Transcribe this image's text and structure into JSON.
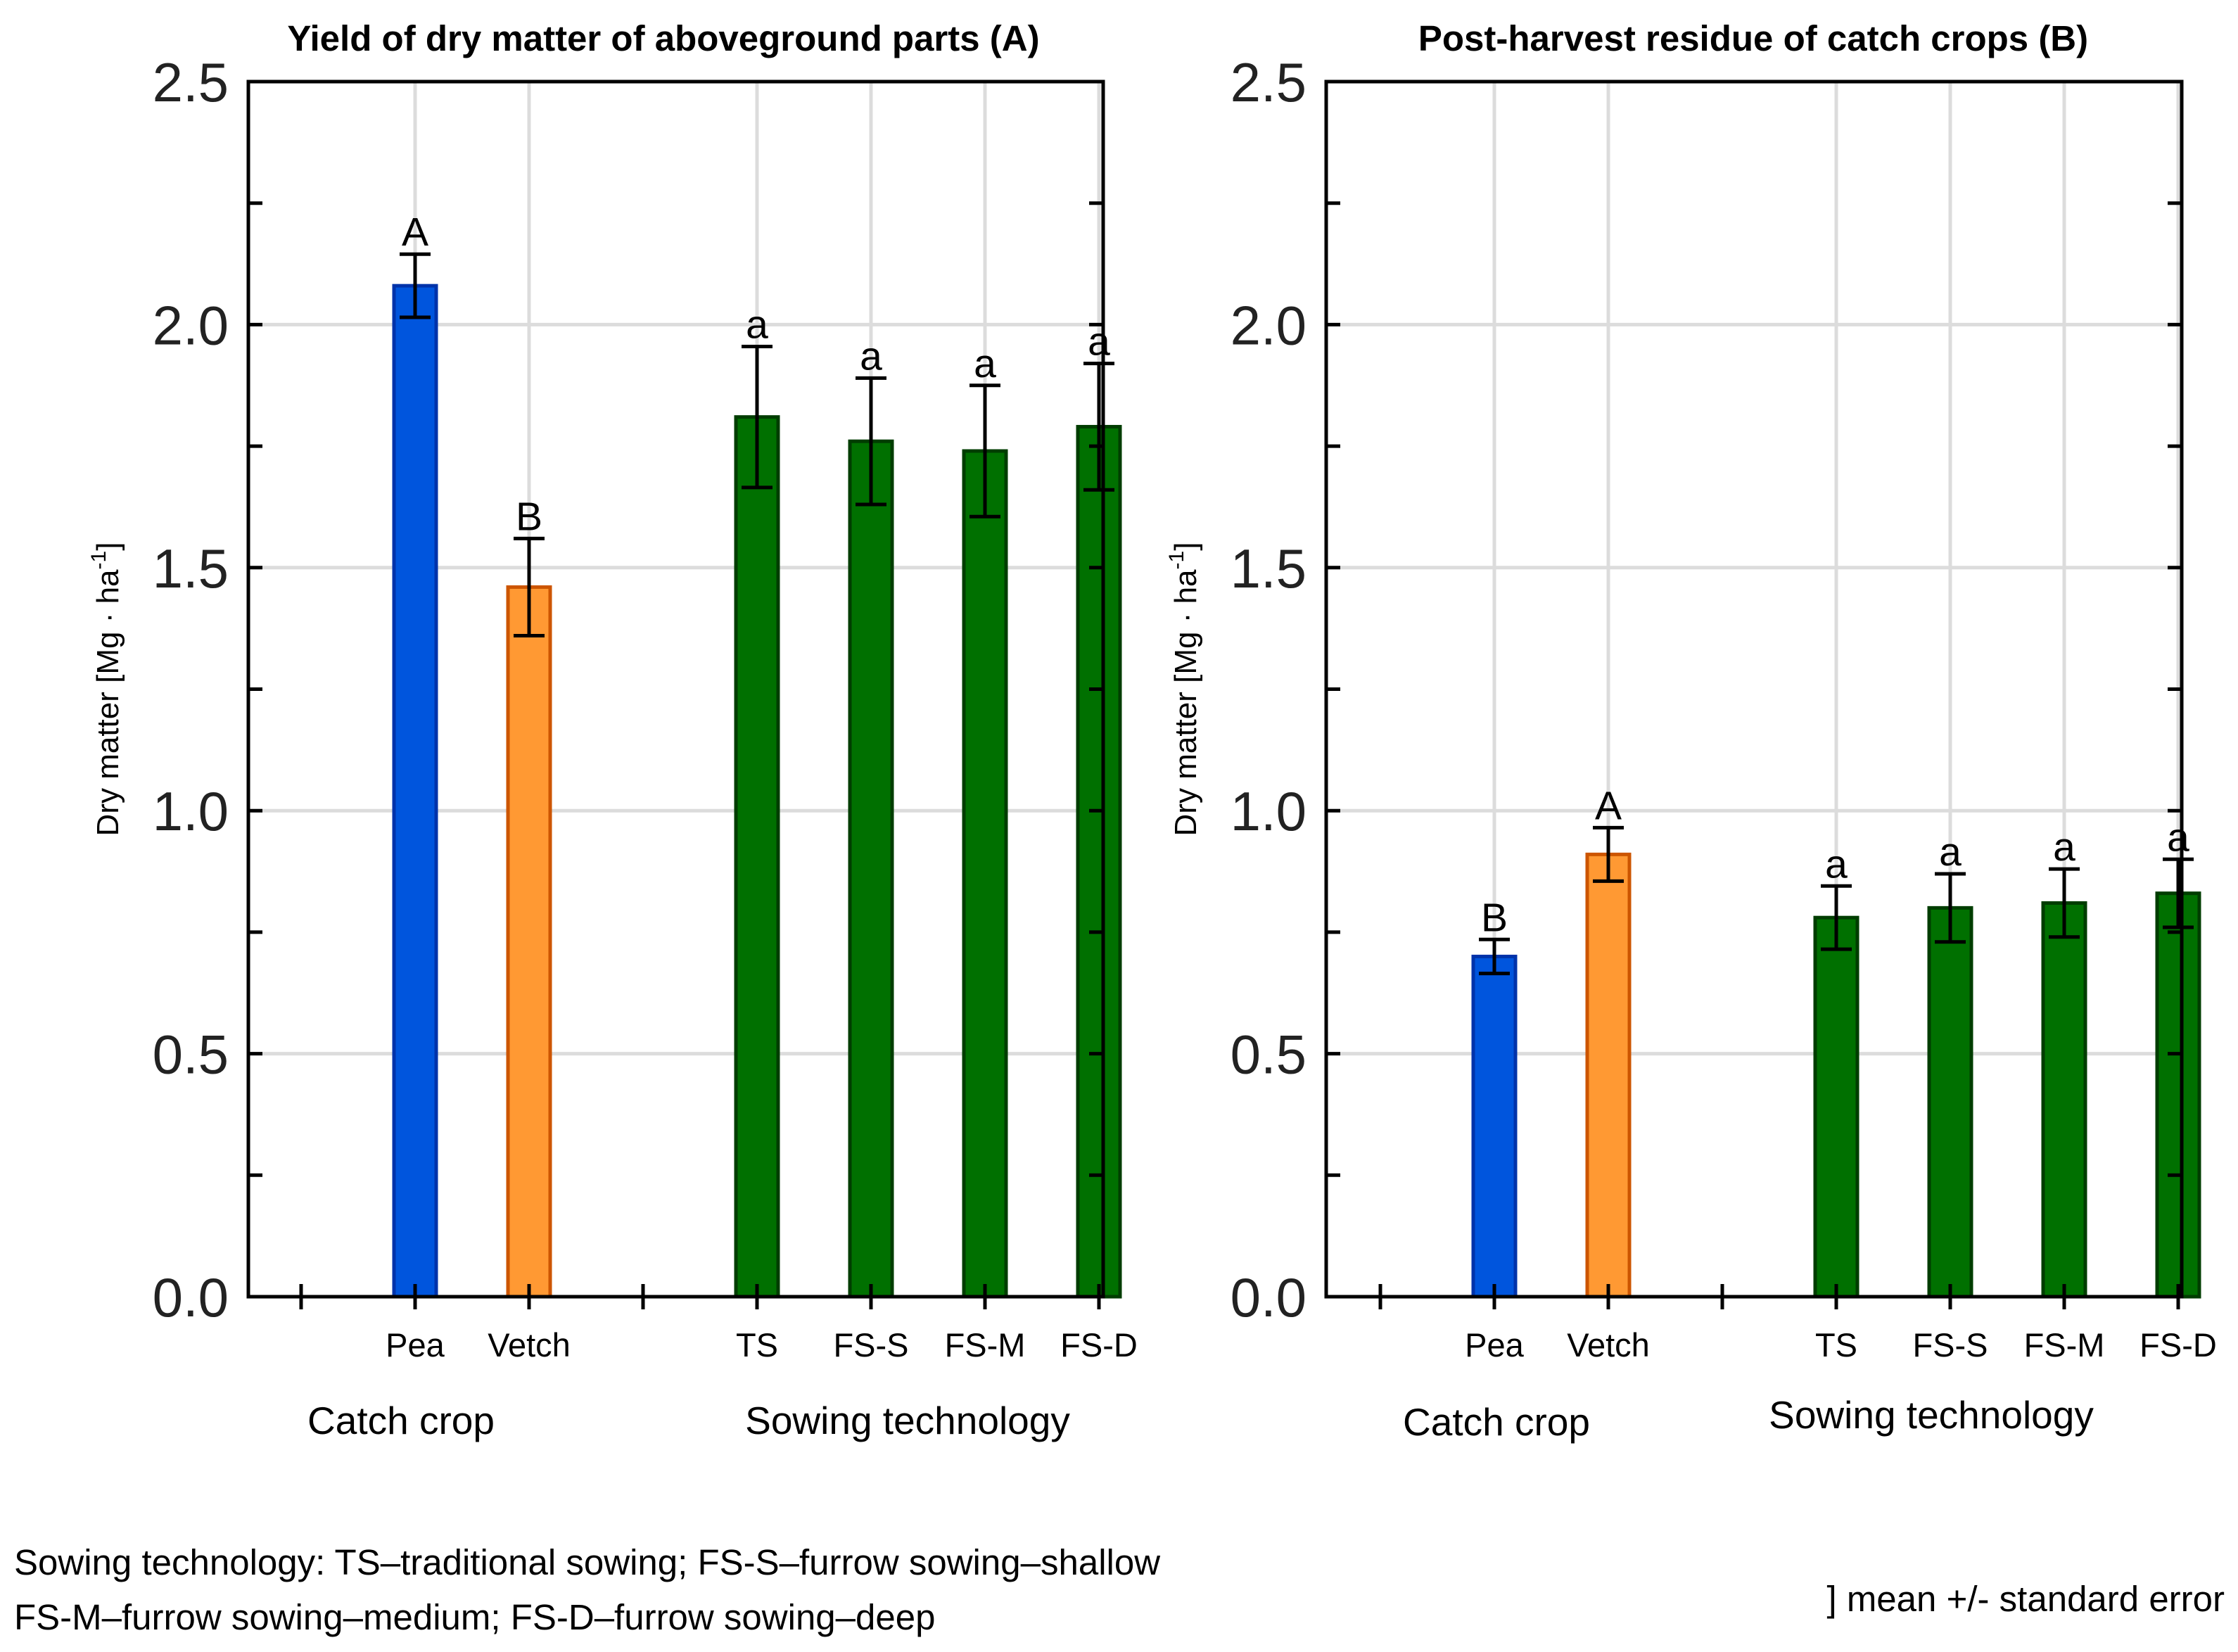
{
  "chart_data": [
    {
      "type": "bar",
      "title": "Yield of dry matter of aboveground parts  (A)",
      "ylabel": "Dry matter [Mg · ha",
      "ylabel_sup": "-1",
      "ylabel_close": "]",
      "ylim": [
        0,
        2.5
      ],
      "yticks": [
        "0.0",
        "0.5",
        "1.0",
        "1.5",
        "2.0",
        "2.5"
      ],
      "grid": true,
      "categories": [
        "Pea",
        "Vetch",
        "TS",
        "FS-S",
        "FS-M",
        "FS-D"
      ],
      "groups": [
        {
          "label": "Catch crop",
          "categories": [
            "Pea",
            "Vetch"
          ]
        },
        {
          "label": "Sowing technology",
          "categories": [
            "TS",
            "FS-S",
            "FS-M",
            "FS-D"
          ]
        }
      ],
      "values": [
        2.08,
        1.46,
        1.81,
        1.76,
        1.74,
        1.79
      ],
      "errors": [
        0.065,
        0.1,
        0.145,
        0.13,
        0.135,
        0.13
      ],
      "significance": [
        "A",
        "B",
        "a",
        "a",
        "a",
        "a"
      ],
      "colors": [
        "#0055dd",
        "#ff9933",
        "#007000",
        "#007000",
        "#007000",
        "#007000"
      ],
      "edge_colors": [
        "#0033aa",
        "#cc5500",
        "#003d00",
        "#003d00",
        "#003d00",
        "#003d00"
      ]
    },
    {
      "type": "bar",
      "title": "Post-harvest residue of catch crops  (B)",
      "ylabel": "Dry matter [Mg · ha",
      "ylabel_sup": "-1",
      "ylabel_close": "]",
      "ylim": [
        0,
        2.5
      ],
      "yticks": [
        "0.0",
        "0.5",
        "1.0",
        "1.5",
        "2.0",
        "2.5"
      ],
      "grid": true,
      "categories": [
        "Pea",
        "Vetch",
        "TS",
        "FS-S",
        "FS-M",
        "FS-D"
      ],
      "groups": [
        {
          "label": "Catch crop",
          "categories": [
            "Pea",
            "Vetch"
          ]
        },
        {
          "label": "Sowing technology",
          "categories": [
            "TS",
            "FS-S",
            "FS-M",
            "FS-D"
          ]
        }
      ],
      "values": [
        0.7,
        0.91,
        0.78,
        0.8,
        0.81,
        0.83
      ],
      "errors": [
        0.035,
        0.055,
        0.065,
        0.07,
        0.07,
        0.07
      ],
      "significance": [
        "B",
        "A",
        "a",
        "a",
        "a",
        "a"
      ],
      "colors": [
        "#0055dd",
        "#ff9933",
        "#007000",
        "#007000",
        "#007000",
        "#007000"
      ],
      "edge_colors": [
        "#0033aa",
        "#cc5500",
        "#003d00",
        "#003d00",
        "#003d00",
        "#003d00"
      ]
    }
  ],
  "footnote": {
    "line1": "Sowing technology: TS–traditional sowing; FS-S–furrow sowing–shallow",
    "line2": "FS-M–furrow sowing–medium; FS-D–furrow sowing–deep",
    "error_note": "] mean +/- standard error"
  }
}
